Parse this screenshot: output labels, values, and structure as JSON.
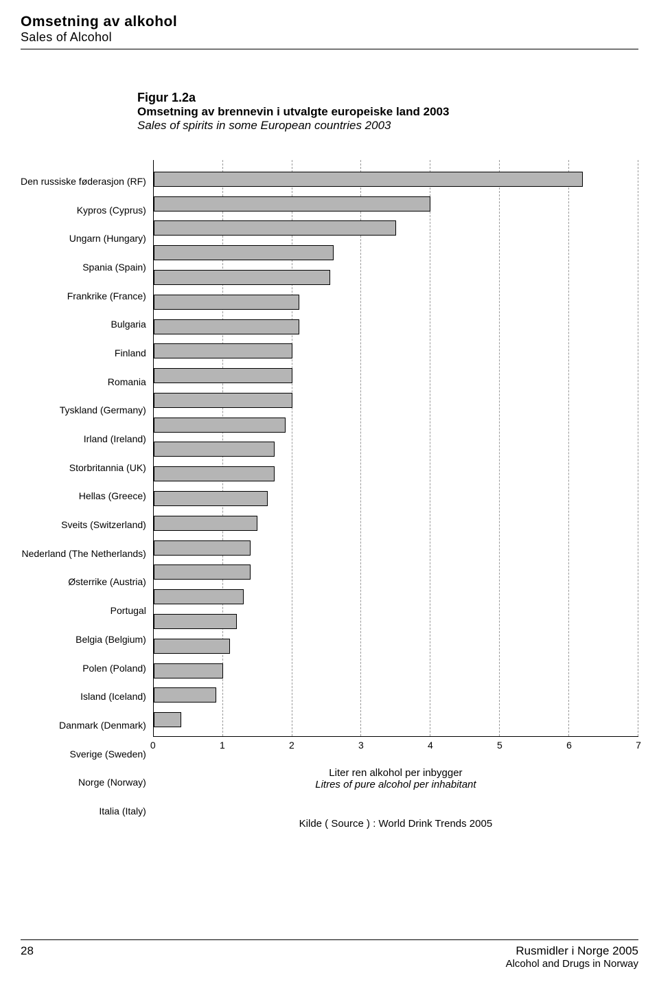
{
  "header": {
    "title": "Omsetning av alkohol",
    "subtitle": "Sales of Alcohol"
  },
  "figure": {
    "number": "Figur 1.2a",
    "title": "Omsetning av brennevin i utvalgte europeiske land 2003",
    "subtitle": "Sales of spirits in some European countries 2003"
  },
  "chart": {
    "type": "bar-horizontal",
    "bar_color": "#b5b5b5",
    "bar_border": "#000000",
    "grid_color": "#999999",
    "background_color": "#ffffff",
    "xlim": [
      0,
      7
    ],
    "xtick_step": 1,
    "xticks": [
      "0",
      "1",
      "2",
      "3",
      "4",
      "5",
      "6",
      "7"
    ],
    "axis_title": "Liter ren alkohol per inbygger",
    "axis_subtitle": "Litres of pure alcohol per inhabitant",
    "categories": [
      "Den russiske føderasjon (RF)",
      "Kypros (Cyprus)",
      "Ungarn (Hungary)",
      "Spania (Spain)",
      "Frankrike (France)",
      "Bulgaria",
      "Finland",
      "Romania",
      "Tyskland (Germany)",
      "Irland (Ireland)",
      "Storbritannia (UK)",
      "Hellas (Greece)",
      "Sveits (Switzerland)",
      "Nederland (The Netherlands)",
      "Østerrike (Austria)",
      "Portugal",
      "Belgia (Belgium)",
      "Polen (Poland)",
      "Island (Iceland)",
      "Danmark (Denmark)",
      "Sverige (Sweden)",
      "Norge (Norway)",
      "Italia (Italy)"
    ],
    "values": [
      6.2,
      4.0,
      3.5,
      2.6,
      2.55,
      2.1,
      2.1,
      2.0,
      2.0,
      2.0,
      1.9,
      1.75,
      1.75,
      1.65,
      1.5,
      1.4,
      1.4,
      1.3,
      1.2,
      1.1,
      1.0,
      0.9,
      0.4
    ]
  },
  "source": "Kilde ( Source ) : World Drink Trends 2005",
  "footer": {
    "page": "28",
    "right1": "Rusmidler i Norge 2005",
    "right2": "Alcohol and Drugs in Norway"
  }
}
